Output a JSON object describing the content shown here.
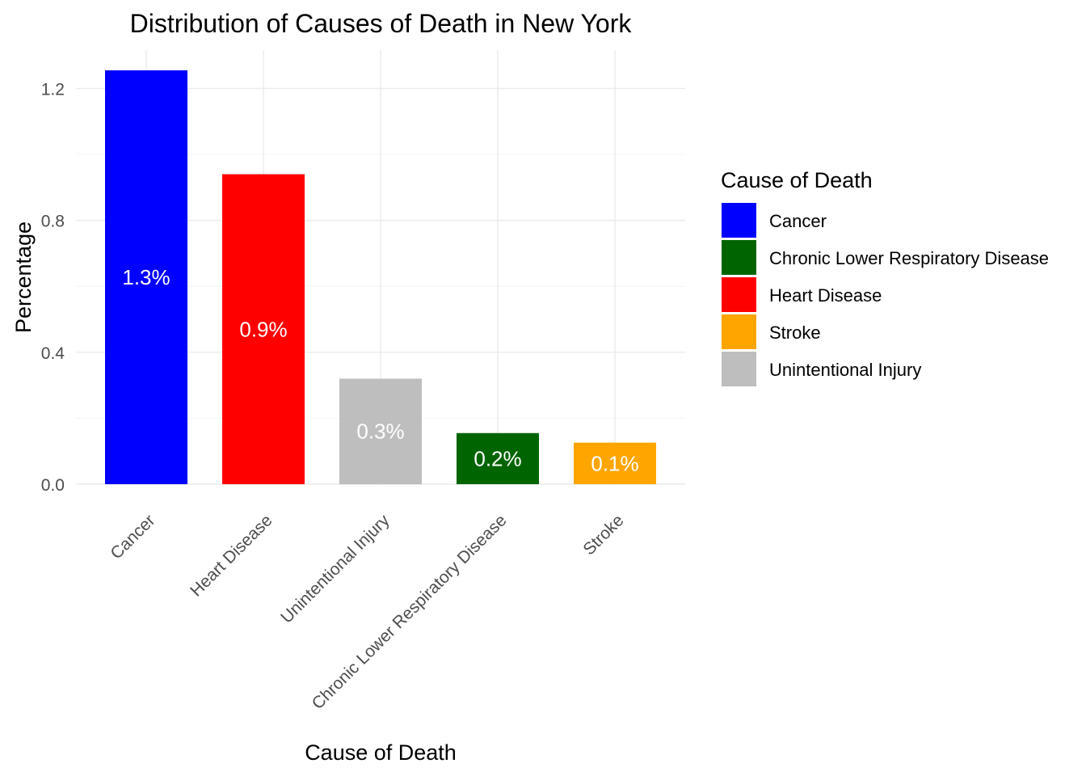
{
  "chart_data": {
    "type": "bar",
    "title": "Distribution of Causes of Death in New York",
    "xlabel": "Cause of Death",
    "ylabel": "Percentage",
    "categories": [
      "Cancer",
      "Heart Disease",
      "Unintentional Injury",
      "Chronic Lower Respiratory Disease",
      "Stroke"
    ],
    "values": [
      1.255,
      0.94,
      0.32,
      0.155,
      0.126
    ],
    "value_labels": [
      "1.3%",
      "0.9%",
      "0.3%",
      "0.2%",
      "0.1%"
    ],
    "colors": [
      "#0000FF",
      "#FF0000",
      "#BEBEBE",
      "#006400",
      "#FFA500"
    ],
    "ylim": [
      0,
      1.255
    ],
    "yticks": [
      0.0,
      0.4,
      0.8,
      1.2
    ],
    "ytick_labels": [
      "0.0",
      "0.4",
      "0.8",
      "1.2"
    ],
    "grid": true,
    "legend": {
      "title": "Cause of Death",
      "position": "right",
      "entries": [
        {
          "label": "Cancer",
          "color": "#0000FF"
        },
        {
          "label": "Chronic Lower Respiratory Disease",
          "color": "#006400"
        },
        {
          "label": "Heart Disease",
          "color": "#FF0000"
        },
        {
          "label": "Stroke",
          "color": "#FFA500"
        },
        {
          "label": "Unintentional Injury",
          "color": "#BEBEBE"
        }
      ]
    }
  }
}
